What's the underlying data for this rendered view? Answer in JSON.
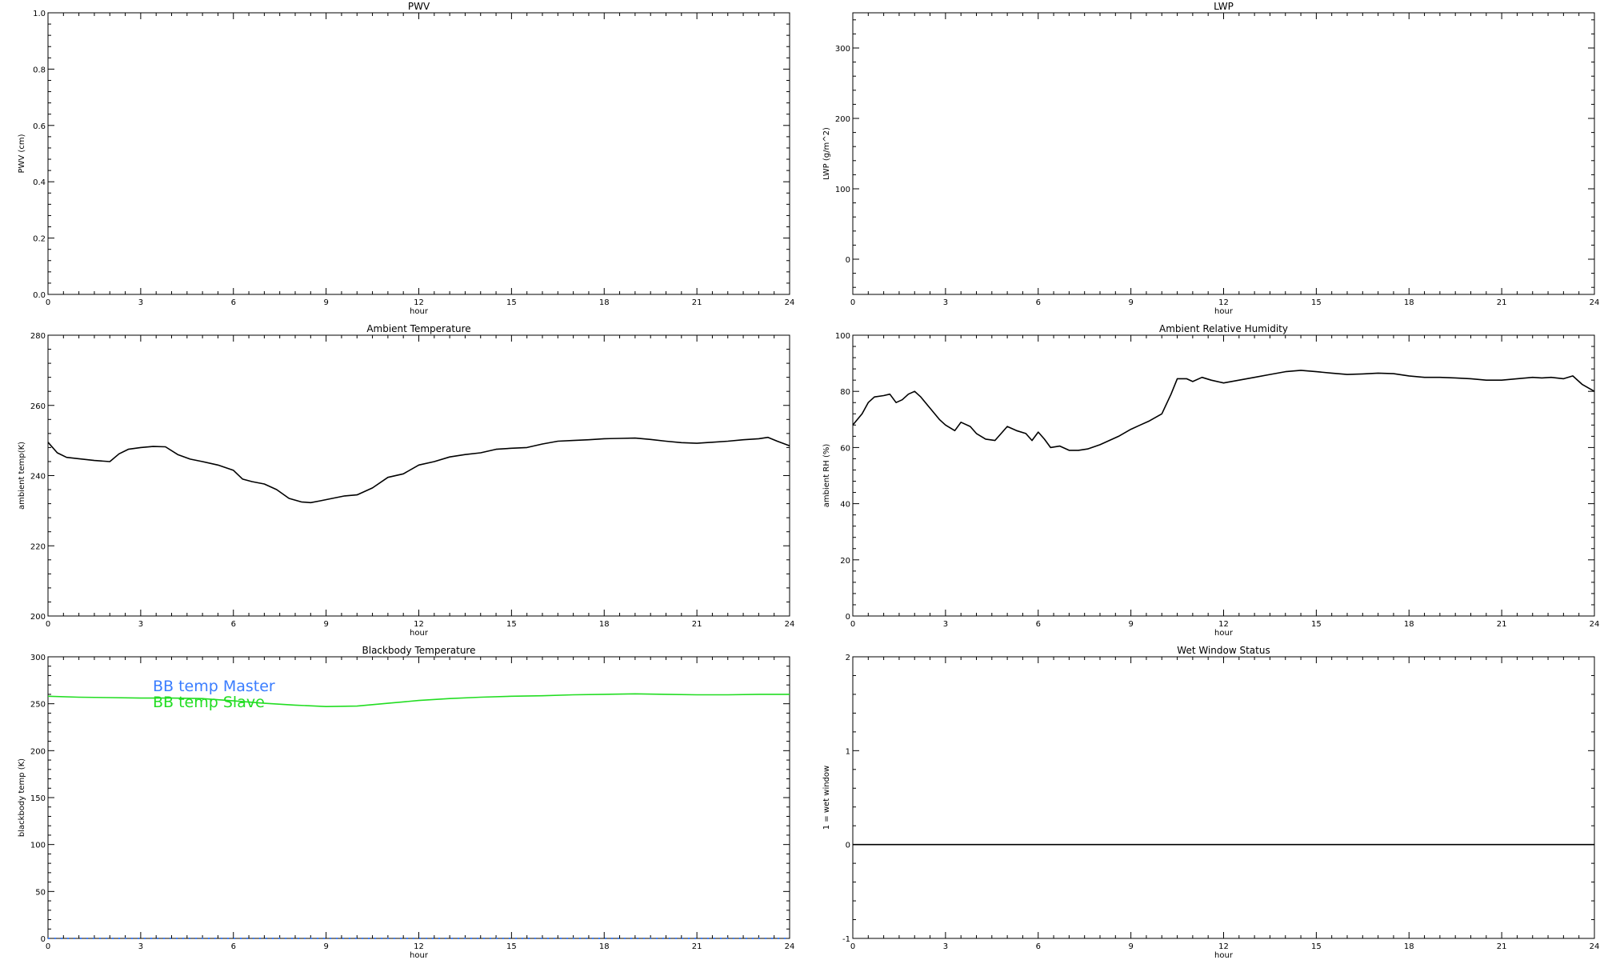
{
  "chart_data": [
    {
      "id": "pwv",
      "type": "line",
      "title": "PWV",
      "xlabel": "hour",
      "ylabel": "PWV (cm)",
      "xlim": [
        0,
        24
      ],
      "ylim": [
        0,
        1
      ],
      "xticks": [
        0,
        3,
        6,
        9,
        12,
        15,
        18,
        21,
        24
      ],
      "yticks": [
        0,
        0.2,
        0.4,
        0.6,
        0.8,
        1
      ],
      "ytick_labels": [
        "0.0",
        "0.2",
        "0.4",
        "0.6",
        "0.8",
        "1.0"
      ],
      "series": []
    },
    {
      "id": "lwp",
      "type": "line",
      "title": "LWP",
      "xlabel": "hour",
      "ylabel": "LWP (g/m^2)",
      "xlim": [
        0,
        24
      ],
      "ylim": [
        -50,
        350
      ],
      "xticks": [
        0,
        3,
        6,
        9,
        12,
        15,
        18,
        21,
        24
      ],
      "yticks": [
        0,
        100,
        200,
        300
      ],
      "ytick_labels": [
        "0",
        "100",
        "200",
        "300"
      ],
      "series": []
    },
    {
      "id": "ambient-temp",
      "type": "line",
      "title": "Ambient Temperature",
      "xlabel": "hour",
      "ylabel": "ambient temp(K)",
      "xlim": [
        0,
        24
      ],
      "ylim": [
        200,
        280
      ],
      "xticks": [
        0,
        3,
        6,
        9,
        12,
        15,
        18,
        21,
        24
      ],
      "yticks": [
        200,
        220,
        240,
        260,
        280
      ],
      "ytick_labels": [
        "200",
        "220",
        "240",
        "260",
        "280"
      ],
      "series": [
        {
          "color": "#000000",
          "x": [
            0,
            0.3,
            0.6,
            1.0,
            1.5,
            2.0,
            2.3,
            2.6,
            3.0,
            3.4,
            3.8,
            4.2,
            4.6,
            5.0,
            5.5,
            6.0,
            6.3,
            6.6,
            7.0,
            7.4,
            7.8,
            8.2,
            8.5,
            8.8,
            9.2,
            9.6,
            10.0,
            10.5,
            11.0,
            11.5,
            12.0,
            12.5,
            13.0,
            13.5,
            14.0,
            14.5,
            15.0,
            15.5,
            16.0,
            16.5,
            17.0,
            17.5,
            18.0,
            18.5,
            19.0,
            19.5,
            20.0,
            20.5,
            21.0,
            21.5,
            22.0,
            22.5,
            23.0,
            23.3,
            23.6,
            24.0
          ],
          "y": [
            249.5,
            246.5,
            245.2,
            244.8,
            244.3,
            244.0,
            246.2,
            247.5,
            248.0,
            248.3,
            248.2,
            246.0,
            244.7,
            244.0,
            243.0,
            241.5,
            239.0,
            238.3,
            237.6,
            236.0,
            233.5,
            232.5,
            232.3,
            232.8,
            233.5,
            234.2,
            234.5,
            236.5,
            239.5,
            240.5,
            243.0,
            244.0,
            245.3,
            246.0,
            246.5,
            247.5,
            247.8,
            248.0,
            249.0,
            249.8,
            250.0,
            250.2,
            250.5,
            250.6,
            250.7,
            250.3,
            249.8,
            249.4,
            249.2,
            249.5,
            249.8,
            250.2,
            250.5,
            250.9,
            249.8,
            248.5
          ]
        }
      ]
    },
    {
      "id": "ambient-rh",
      "type": "line",
      "title": "Ambient Relative Humidity",
      "xlabel": "hour",
      "ylabel": "ambient RH (%)",
      "xlim": [
        0,
        24
      ],
      "ylim": [
        0,
        100
      ],
      "xticks": [
        0,
        3,
        6,
        9,
        12,
        15,
        18,
        21,
        24
      ],
      "yticks": [
        0,
        20,
        40,
        60,
        80,
        100
      ],
      "ytick_labels": [
        "0",
        "20",
        "40",
        "60",
        "80",
        "100"
      ],
      "series": [
        {
          "color": "#000000",
          "x": [
            0,
            0.15,
            0.3,
            0.5,
            0.7,
            1.0,
            1.2,
            1.4,
            1.6,
            1.8,
            2.0,
            2.2,
            2.5,
            2.8,
            3.0,
            3.3,
            3.5,
            3.8,
            4.0,
            4.3,
            4.6,
            5.0,
            5.3,
            5.6,
            5.8,
            6.0,
            6.2,
            6.4,
            6.7,
            7.0,
            7.3,
            7.6,
            8.0,
            8.3,
            8.6,
            9.0,
            9.3,
            9.6,
            10.0,
            10.3,
            10.5,
            10.8,
            11.0,
            11.3,
            11.6,
            12.0,
            12.5,
            13.0,
            13.5,
            14.0,
            14.5,
            15.0,
            15.5,
            16.0,
            16.5,
            17.0,
            17.5,
            18.0,
            18.5,
            19.0,
            19.5,
            20.0,
            20.5,
            21.0,
            21.5,
            22.0,
            22.3,
            22.6,
            23.0,
            23.3,
            23.6,
            24.0
          ],
          "y": [
            68,
            70,
            72,
            76,
            78,
            78.5,
            79,
            76,
            77,
            79,
            80,
            78,
            74,
            70,
            68,
            66,
            69,
            67.5,
            65,
            63,
            62.5,
            67.5,
            66,
            65,
            62.5,
            65.5,
            63,
            60,
            60.5,
            59,
            59,
            59.5,
            61,
            62.5,
            64,
            66.5,
            68,
            69.5,
            72,
            79,
            84.5,
            84.5,
            83.5,
            85,
            84,
            83,
            84,
            85,
            86,
            87,
            87.5,
            87,
            86.5,
            86,
            86.2,
            86.5,
            86.3,
            85.5,
            85,
            85,
            84.8,
            84.5,
            84,
            84,
            84.5,
            85,
            84.8,
            85,
            84.5,
            85.5,
            82.5,
            80
          ]
        }
      ]
    },
    {
      "id": "bb-temp",
      "type": "line",
      "title": "Blackbody Temperature",
      "xlabel": "hour",
      "ylabel": "blackbody temp (K)",
      "xlim": [
        0,
        24
      ],
      "ylim": [
        0,
        300
      ],
      "xticks": [
        0,
        3,
        6,
        9,
        12,
        15,
        18,
        21,
        24
      ],
      "yticks": [
        0,
        50,
        100,
        150,
        200,
        250,
        300
      ],
      "ytick_labels": [
        "0",
        "50",
        "100",
        "150",
        "200",
        "250",
        "300"
      ],
      "legend": {
        "placement": "top-left"
      },
      "series": [
        {
          "name": "BB temp Master",
          "color": "#3a7dff",
          "style": "dotted",
          "x": [
            0,
            24
          ],
          "y": [
            0,
            0
          ]
        },
        {
          "name": "BB temp Slave",
          "color": "#22dd22",
          "x": [
            0,
            1,
            2,
            3,
            4,
            5,
            6,
            7,
            8,
            9,
            10,
            11,
            12,
            13,
            14,
            15,
            16,
            17,
            18,
            19,
            20,
            21,
            22,
            23,
            24
          ],
          "y": [
            258,
            257,
            256.5,
            256,
            256,
            255.5,
            253,
            250.5,
            248.5,
            247,
            247.5,
            250.5,
            253.5,
            255.5,
            257,
            258,
            258.5,
            259.5,
            260,
            260.5,
            260,
            259.5,
            259.5,
            260,
            260
          ]
        }
      ]
    },
    {
      "id": "wet-window",
      "type": "line",
      "title": "Wet Window Status",
      "xlabel": "hour",
      "ylabel": "1 = wet window",
      "xlim": [
        0,
        24
      ],
      "ylim": [
        -1,
        2
      ],
      "xticks": [
        0,
        3,
        6,
        9,
        12,
        15,
        18,
        21,
        24
      ],
      "yticks": [
        -1,
        0,
        1,
        2
      ],
      "ytick_labels": [
        "-1",
        "0",
        "1",
        "2"
      ],
      "series": [
        {
          "color": "#000000",
          "x": [
            0,
            24
          ],
          "y": [
            0,
            0
          ]
        }
      ]
    }
  ]
}
